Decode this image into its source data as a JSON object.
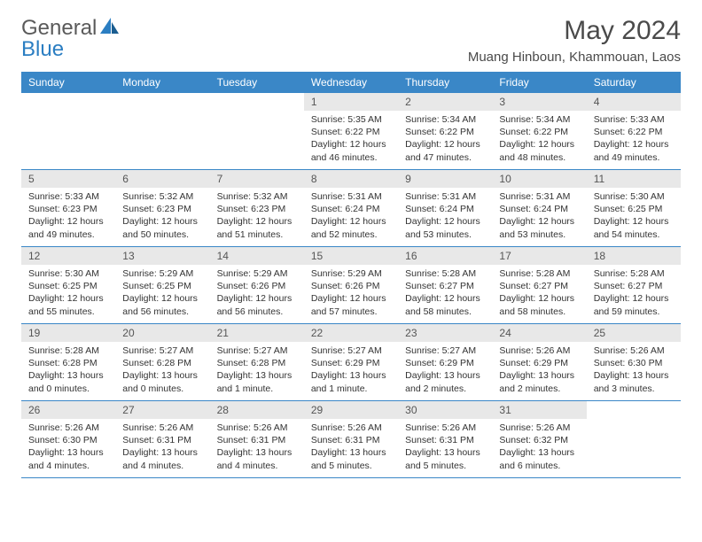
{
  "logo": {
    "text1": "General",
    "text2": "Blue"
  },
  "title": "May 2024",
  "location": "Muang Hinboun, Khammouan, Laos",
  "colors": {
    "header_bg": "#3a87c7",
    "header_text": "#ffffff",
    "daynum_bg": "#e8e8e8",
    "text": "#333333",
    "logo_gray": "#5a5a5a",
    "logo_blue": "#2b7ec2",
    "border": "#3a87c7"
  },
  "weekdays": [
    "Sunday",
    "Monday",
    "Tuesday",
    "Wednesday",
    "Thursday",
    "Friday",
    "Saturday"
  ],
  "weeks": [
    [
      null,
      null,
      null,
      {
        "n": "1",
        "sr": "Sunrise: 5:35 AM",
        "ss": "Sunset: 6:22 PM",
        "d1": "Daylight: 12 hours",
        "d2": "and 46 minutes."
      },
      {
        "n": "2",
        "sr": "Sunrise: 5:34 AM",
        "ss": "Sunset: 6:22 PM",
        "d1": "Daylight: 12 hours",
        "d2": "and 47 minutes."
      },
      {
        "n": "3",
        "sr": "Sunrise: 5:34 AM",
        "ss": "Sunset: 6:22 PM",
        "d1": "Daylight: 12 hours",
        "d2": "and 48 minutes."
      },
      {
        "n": "4",
        "sr": "Sunrise: 5:33 AM",
        "ss": "Sunset: 6:22 PM",
        "d1": "Daylight: 12 hours",
        "d2": "and 49 minutes."
      }
    ],
    [
      {
        "n": "5",
        "sr": "Sunrise: 5:33 AM",
        "ss": "Sunset: 6:23 PM",
        "d1": "Daylight: 12 hours",
        "d2": "and 49 minutes."
      },
      {
        "n": "6",
        "sr": "Sunrise: 5:32 AM",
        "ss": "Sunset: 6:23 PM",
        "d1": "Daylight: 12 hours",
        "d2": "and 50 minutes."
      },
      {
        "n": "7",
        "sr": "Sunrise: 5:32 AM",
        "ss": "Sunset: 6:23 PM",
        "d1": "Daylight: 12 hours",
        "d2": "and 51 minutes."
      },
      {
        "n": "8",
        "sr": "Sunrise: 5:31 AM",
        "ss": "Sunset: 6:24 PM",
        "d1": "Daylight: 12 hours",
        "d2": "and 52 minutes."
      },
      {
        "n": "9",
        "sr": "Sunrise: 5:31 AM",
        "ss": "Sunset: 6:24 PM",
        "d1": "Daylight: 12 hours",
        "d2": "and 53 minutes."
      },
      {
        "n": "10",
        "sr": "Sunrise: 5:31 AM",
        "ss": "Sunset: 6:24 PM",
        "d1": "Daylight: 12 hours",
        "d2": "and 53 minutes."
      },
      {
        "n": "11",
        "sr": "Sunrise: 5:30 AM",
        "ss": "Sunset: 6:25 PM",
        "d1": "Daylight: 12 hours",
        "d2": "and 54 minutes."
      }
    ],
    [
      {
        "n": "12",
        "sr": "Sunrise: 5:30 AM",
        "ss": "Sunset: 6:25 PM",
        "d1": "Daylight: 12 hours",
        "d2": "and 55 minutes."
      },
      {
        "n": "13",
        "sr": "Sunrise: 5:29 AM",
        "ss": "Sunset: 6:25 PM",
        "d1": "Daylight: 12 hours",
        "d2": "and 56 minutes."
      },
      {
        "n": "14",
        "sr": "Sunrise: 5:29 AM",
        "ss": "Sunset: 6:26 PM",
        "d1": "Daylight: 12 hours",
        "d2": "and 56 minutes."
      },
      {
        "n": "15",
        "sr": "Sunrise: 5:29 AM",
        "ss": "Sunset: 6:26 PM",
        "d1": "Daylight: 12 hours",
        "d2": "and 57 minutes."
      },
      {
        "n": "16",
        "sr": "Sunrise: 5:28 AM",
        "ss": "Sunset: 6:27 PM",
        "d1": "Daylight: 12 hours",
        "d2": "and 58 minutes."
      },
      {
        "n": "17",
        "sr": "Sunrise: 5:28 AM",
        "ss": "Sunset: 6:27 PM",
        "d1": "Daylight: 12 hours",
        "d2": "and 58 minutes."
      },
      {
        "n": "18",
        "sr": "Sunrise: 5:28 AM",
        "ss": "Sunset: 6:27 PM",
        "d1": "Daylight: 12 hours",
        "d2": "and 59 minutes."
      }
    ],
    [
      {
        "n": "19",
        "sr": "Sunrise: 5:28 AM",
        "ss": "Sunset: 6:28 PM",
        "d1": "Daylight: 13 hours",
        "d2": "and 0 minutes."
      },
      {
        "n": "20",
        "sr": "Sunrise: 5:27 AM",
        "ss": "Sunset: 6:28 PM",
        "d1": "Daylight: 13 hours",
        "d2": "and 0 minutes."
      },
      {
        "n": "21",
        "sr": "Sunrise: 5:27 AM",
        "ss": "Sunset: 6:28 PM",
        "d1": "Daylight: 13 hours",
        "d2": "and 1 minute."
      },
      {
        "n": "22",
        "sr": "Sunrise: 5:27 AM",
        "ss": "Sunset: 6:29 PM",
        "d1": "Daylight: 13 hours",
        "d2": "and 1 minute."
      },
      {
        "n": "23",
        "sr": "Sunrise: 5:27 AM",
        "ss": "Sunset: 6:29 PM",
        "d1": "Daylight: 13 hours",
        "d2": "and 2 minutes."
      },
      {
        "n": "24",
        "sr": "Sunrise: 5:26 AM",
        "ss": "Sunset: 6:29 PM",
        "d1": "Daylight: 13 hours",
        "d2": "and 2 minutes."
      },
      {
        "n": "25",
        "sr": "Sunrise: 5:26 AM",
        "ss": "Sunset: 6:30 PM",
        "d1": "Daylight: 13 hours",
        "d2": "and 3 minutes."
      }
    ],
    [
      {
        "n": "26",
        "sr": "Sunrise: 5:26 AM",
        "ss": "Sunset: 6:30 PM",
        "d1": "Daylight: 13 hours",
        "d2": "and 4 minutes."
      },
      {
        "n": "27",
        "sr": "Sunrise: 5:26 AM",
        "ss": "Sunset: 6:31 PM",
        "d1": "Daylight: 13 hours",
        "d2": "and 4 minutes."
      },
      {
        "n": "28",
        "sr": "Sunrise: 5:26 AM",
        "ss": "Sunset: 6:31 PM",
        "d1": "Daylight: 13 hours",
        "d2": "and 4 minutes."
      },
      {
        "n": "29",
        "sr": "Sunrise: 5:26 AM",
        "ss": "Sunset: 6:31 PM",
        "d1": "Daylight: 13 hours",
        "d2": "and 5 minutes."
      },
      {
        "n": "30",
        "sr": "Sunrise: 5:26 AM",
        "ss": "Sunset: 6:31 PM",
        "d1": "Daylight: 13 hours",
        "d2": "and 5 minutes."
      },
      {
        "n": "31",
        "sr": "Sunrise: 5:26 AM",
        "ss": "Sunset: 6:32 PM",
        "d1": "Daylight: 13 hours",
        "d2": "and 6 minutes."
      },
      null
    ]
  ]
}
